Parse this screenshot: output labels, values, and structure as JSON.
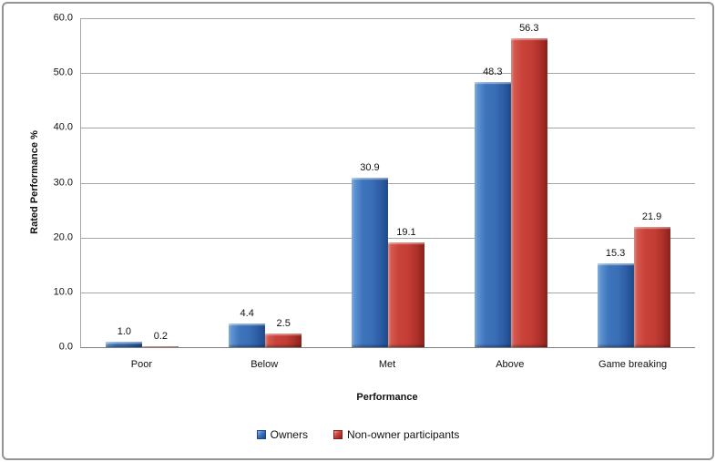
{
  "chart_data": {
    "type": "bar",
    "title": "",
    "categories": [
      "Poor",
      "Below",
      "Met",
      "Above",
      "Game breaking"
    ],
    "series": [
      {
        "name": "Owners",
        "color": "#3E74BC",
        "values": [
          1.0,
          4.4,
          30.9,
          48.3,
          15.3
        ]
      },
      {
        "name": "Non-owner participants",
        "color": "#C9423A",
        "values": [
          0.2,
          2.5,
          19.1,
          56.3,
          21.9
        ]
      }
    ],
    "value_label_format": "one-decimal",
    "xlabel": "Performance",
    "ylabel": "Rated Performance %",
    "ylim": [
      0,
      60
    ],
    "ytick_step": 10,
    "ytick_labels": [
      "0.0",
      "10.0",
      "20.0",
      "30.0",
      "40.0",
      "50.0",
      "60.0"
    ],
    "grid": true,
    "gridline_color": "#A6A6A6",
    "legend_position": "bottom",
    "bar_style": "beveled"
  }
}
